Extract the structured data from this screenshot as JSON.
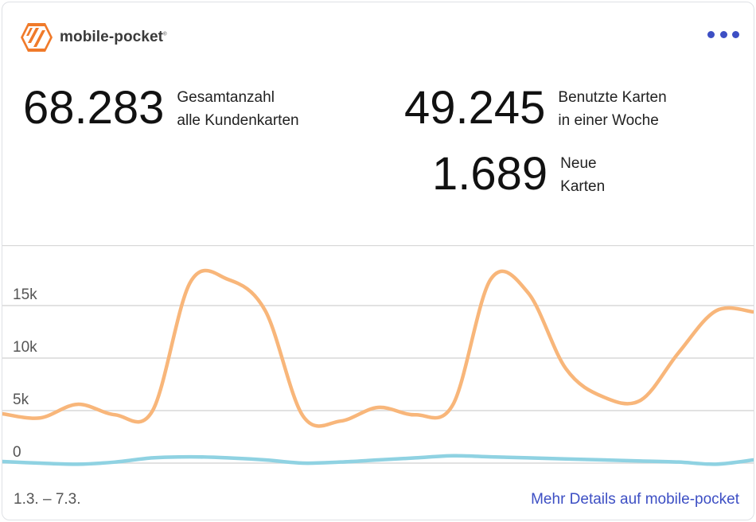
{
  "header": {
    "brand": "mobile-pocket",
    "brand_mark": "®",
    "menu_icon": "more-dots-icon"
  },
  "stats": [
    {
      "value": "68.283",
      "label_line1": "Gesamtanzahl",
      "label_line2": "alle Kundenkarten"
    },
    {
      "value": "49.245",
      "label_line1": "Benutzte Karten",
      "label_line2": "in einer Woche"
    },
    {
      "value": "1.689",
      "label_line1": "Neue",
      "label_line2": "Karten"
    }
  ],
  "chart_data": {
    "type": "line",
    "yticks": [
      "0",
      "5k",
      "10k",
      "15k"
    ],
    "ylim": [
      0,
      20000
    ],
    "grid": true,
    "series": [
      {
        "color": "#f8b67a",
        "values": [
          4700,
          4300,
          5600,
          4600,
          5000,
          17200,
          17500,
          14500,
          4500,
          4000,
          5300,
          4600,
          5600,
          17500,
          16200,
          9000,
          6300,
          6000,
          10500,
          14500,
          14400
        ]
      },
      {
        "color": "#8fd2e2",
        "values": [
          150,
          0,
          -100,
          100,
          500,
          600,
          500,
          300,
          0,
          100,
          300,
          500,
          700,
          600,
          500,
          400,
          300,
          200,
          100,
          -100,
          300
        ]
      }
    ]
  },
  "footer": {
    "date_range": "1.3. – 7.3.",
    "details_link": "Mehr Details auf mobile-pocket"
  }
}
